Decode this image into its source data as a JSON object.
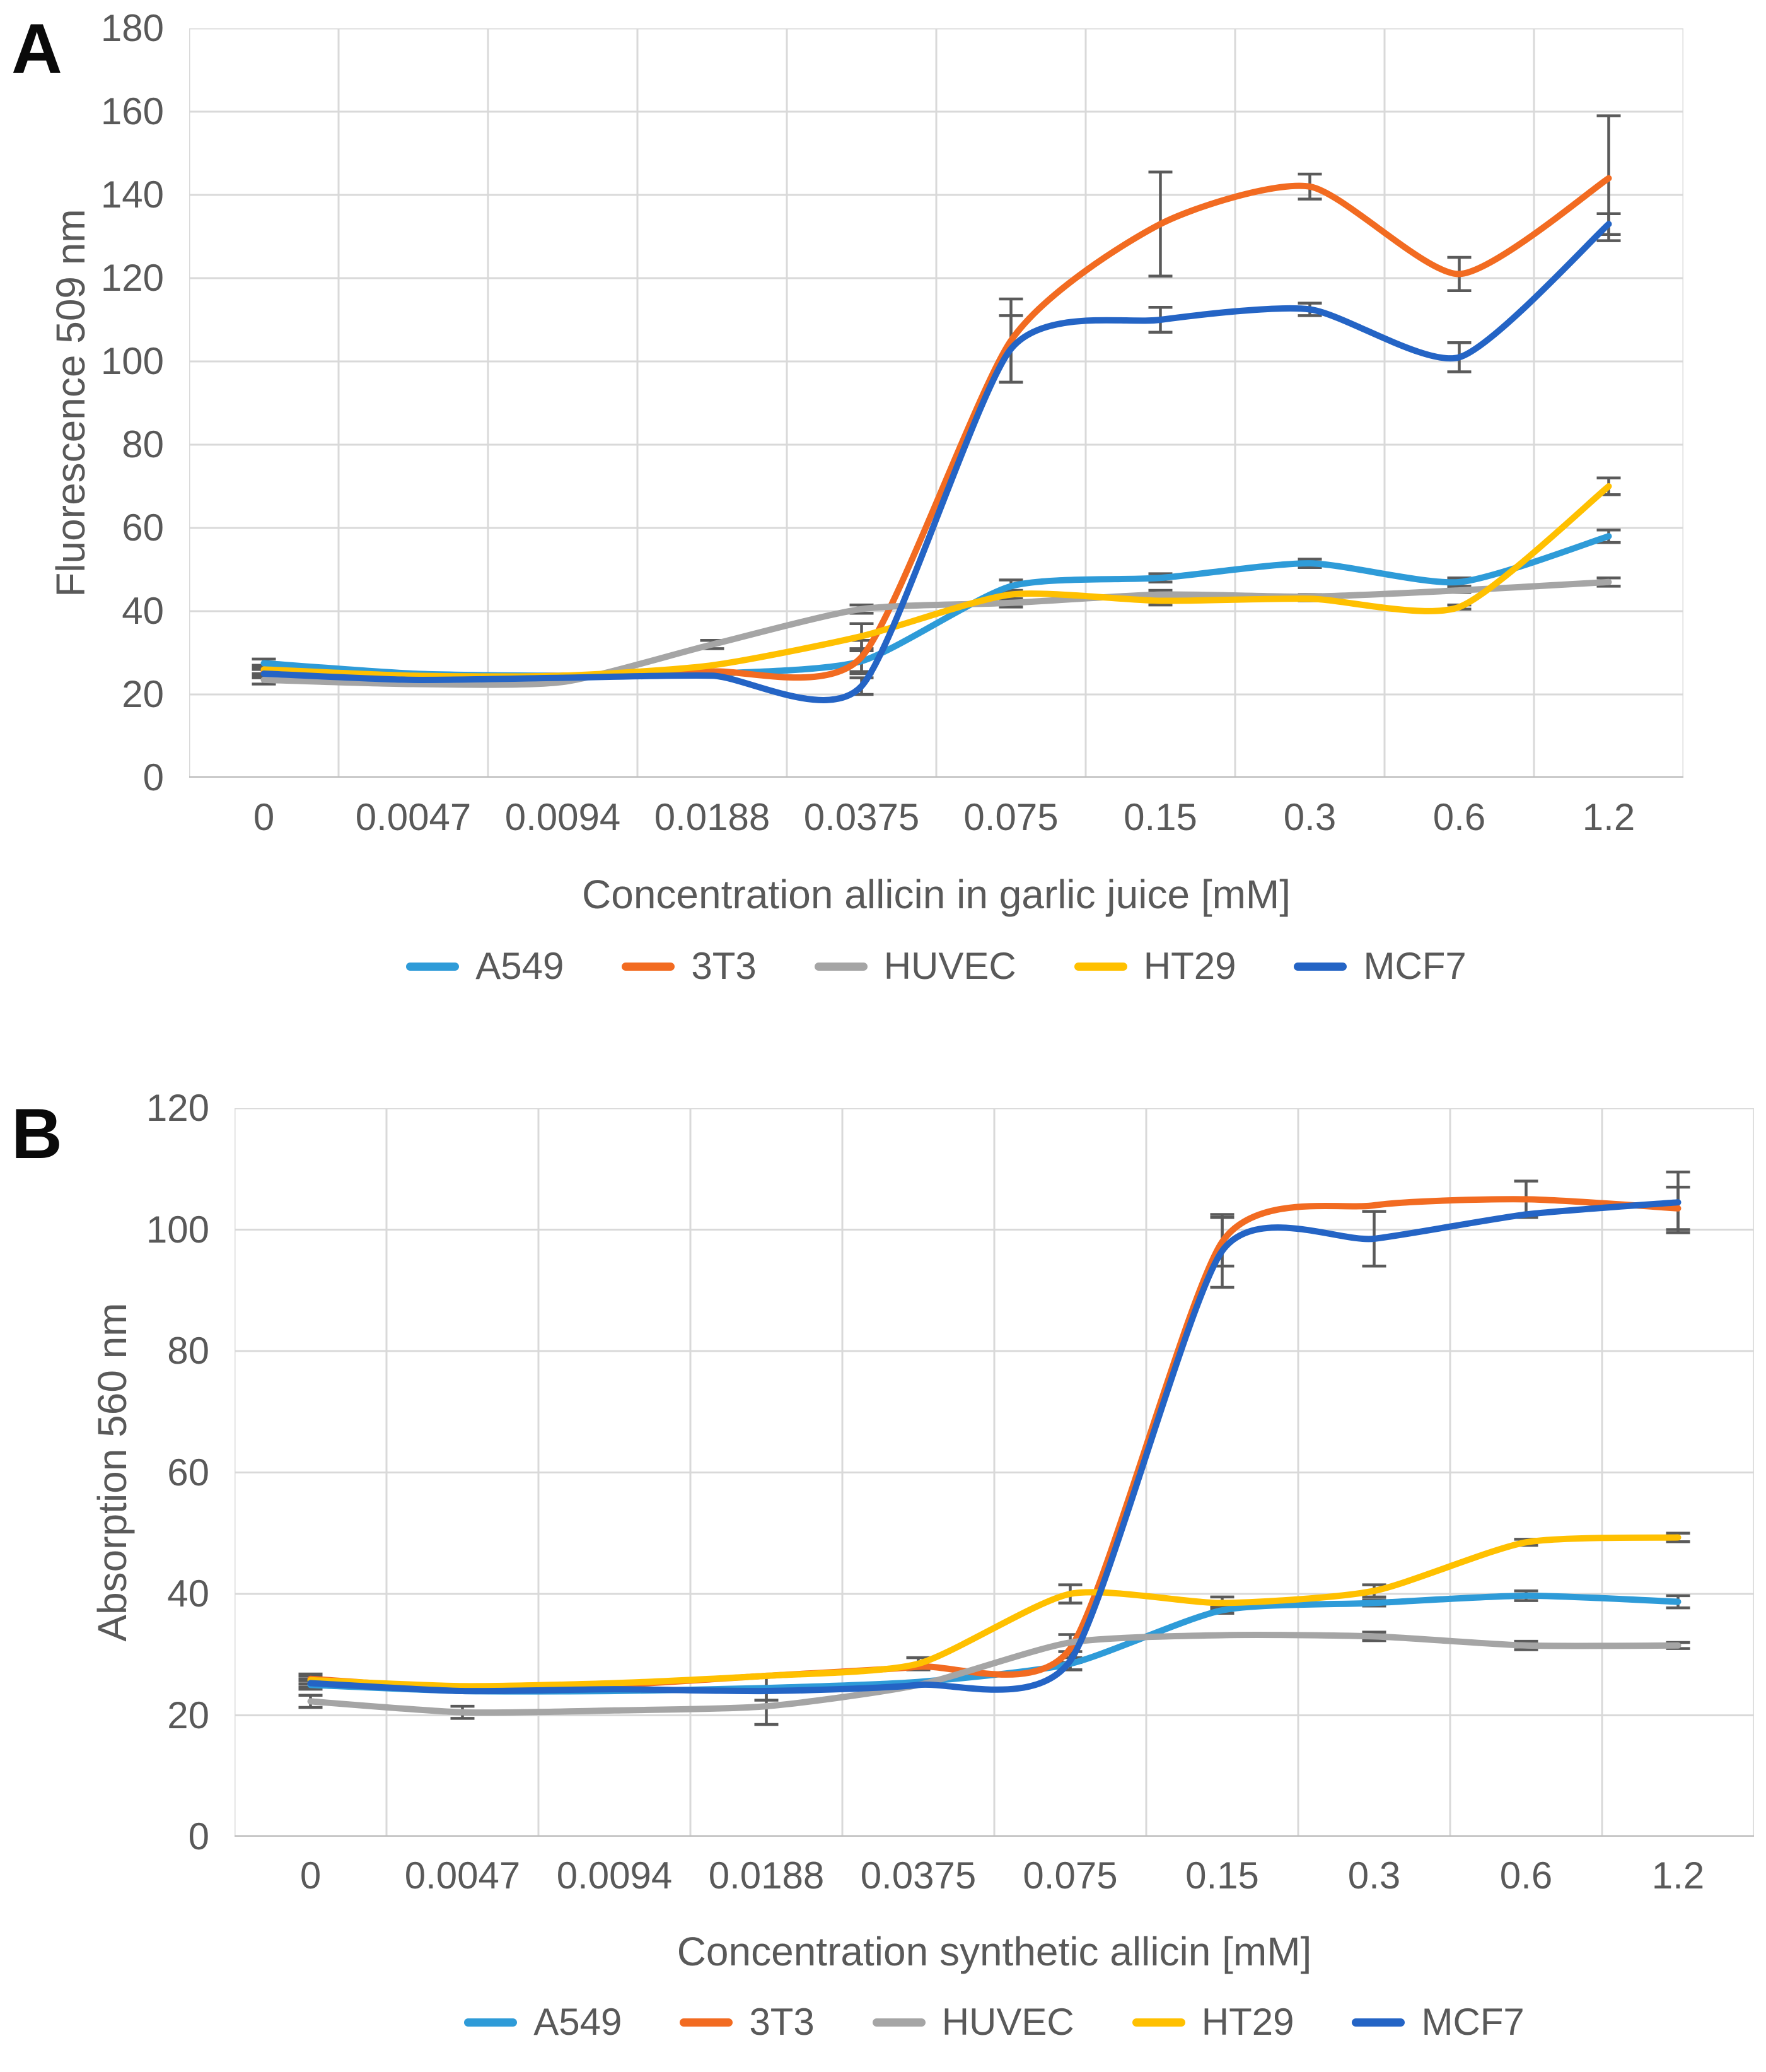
{
  "page": {
    "background": "#ffffff",
    "text_color": "#595959",
    "grid_color": "#d9d9d9",
    "axis_line_color": "#bfbfbf",
    "error_bar_color": "#5a5a5a"
  },
  "chart_data": [
    {
      "type": "line",
      "panel_label": "A",
      "title": "",
      "ylabel": "Fluorescence 509 nm",
      "xlabel": "Concentration allicin in garlic juice [mM]",
      "categories": [
        "0",
        "0.0047",
        "0.0094",
        "0.0188",
        "0.0375",
        "0.075",
        "0.15",
        "0.3",
        "0.6",
        "1.2"
      ],
      "ylim": [
        0,
        180
      ],
      "y_step": 20,
      "y_ticks": [
        "0",
        "20",
        "40",
        "60",
        "80",
        "100",
        "120",
        "140",
        "160",
        "180"
      ],
      "grid": true,
      "smooth": true,
      "legend_position": "bottom",
      "series": [
        {
          "name": "A549",
          "color": "#2E9BD8",
          "values": [
            27.5,
            25,
            24.5,
            25,
            28,
            46,
            48,
            51.5,
            47,
            58
          ],
          "errors": [
            1,
            0,
            0,
            0,
            2.5,
            1.5,
            1,
            1,
            1,
            1.5
          ]
        },
        {
          "name": "3T3",
          "color": "#F26B21",
          "values": [
            25.5,
            24,
            24.5,
            25.5,
            29,
            105,
            133,
            142,
            121,
            144
          ],
          "errors": [
            1,
            0,
            0,
            0,
            4,
            10,
            12.5,
            3,
            4,
            15
          ]
        },
        {
          "name": "HUVEC",
          "color": "#A5A5A5",
          "values": [
            23.5,
            22.5,
            23,
            32,
            40.5,
            42,
            44,
            43.5,
            45,
            47
          ],
          "errors": [
            1,
            0,
            0,
            1,
            1,
            1,
            1,
            0.5,
            0.5,
            1
          ]
        },
        {
          "name": "HT29",
          "color": "#FFC000",
          "values": [
            26,
            24.5,
            24.5,
            27,
            34,
            44,
            42.5,
            43,
            41,
            70
          ],
          "errors": [
            1,
            0,
            0,
            0,
            3,
            1,
            1,
            0.5,
            0.5,
            2
          ]
        },
        {
          "name": "MCF7",
          "color": "#2464C5",
          "values": [
            25,
            23.5,
            24,
            24.5,
            22,
            103,
            110,
            112.5,
            101,
            133
          ],
          "errors": [
            1,
            0,
            0,
            0,
            2,
            8,
            3,
            1.5,
            3.5,
            2.5
          ]
        }
      ]
    },
    {
      "type": "line",
      "panel_label": "B",
      "title": "",
      "ylabel": "Absorption 560 nm",
      "xlabel": "Concentration synthetic allicin [mM]",
      "categories": [
        "0",
        "0.0047",
        "0.0094",
        "0.0188",
        "0.0375",
        "0.075",
        "0.15",
        "0.3",
        "0.6",
        "1.2"
      ],
      "ylim": [
        0,
        120
      ],
      "y_step": 20,
      "y_ticks": [
        "0",
        "20",
        "40",
        "60",
        "80",
        "100",
        "120"
      ],
      "grid": true,
      "smooth": true,
      "legend_position": "bottom",
      "series": [
        {
          "name": "A549",
          "color": "#2E9BD8",
          "values": [
            25,
            24,
            24,
            24.5,
            25.5,
            28.5,
            37.3,
            38.5,
            39.7,
            38.7
          ],
          "errors": [
            0.7,
            0,
            0,
            2,
            0,
            1,
            0.5,
            0.5,
            0.8,
            1
          ]
        },
        {
          "name": "3T3",
          "color": "#F26B21",
          "values": [
            26,
            24.5,
            25,
            26.5,
            28,
            31,
            98,
            104,
            105,
            103.5
          ],
          "errors": [
            0.8,
            0,
            0,
            0,
            0,
            2.3,
            4,
            0,
            3,
            3.5
          ]
        },
        {
          "name": "HUVEC",
          "color": "#A5A5A5",
          "values": [
            22.3,
            20.5,
            20.8,
            21.5,
            25,
            32,
            33.2,
            33,
            31.5,
            31.5
          ],
          "errors": [
            1,
            1,
            0,
            3,
            0,
            0,
            0,
            0.7,
            0.7,
            0.5
          ]
        },
        {
          "name": "HT29",
          "color": "#FFC000",
          "values": [
            25.8,
            24.8,
            25.3,
            26.5,
            28.5,
            40,
            38.5,
            40.5,
            48.5,
            49.3
          ],
          "errors": [
            0.7,
            0,
            0,
            0,
            1,
            1.5,
            1,
            1,
            0.5,
            0.7
          ]
        },
        {
          "name": "MCF7",
          "color": "#2464C5",
          "values": [
            25.3,
            24,
            24.3,
            24,
            25,
            29,
            96.5,
            98.5,
            102.5,
            104.5
          ],
          "errors": [
            0.7,
            0,
            0,
            0,
            0,
            1.5,
            6,
            4.5,
            0,
            5
          ]
        }
      ]
    }
  ]
}
